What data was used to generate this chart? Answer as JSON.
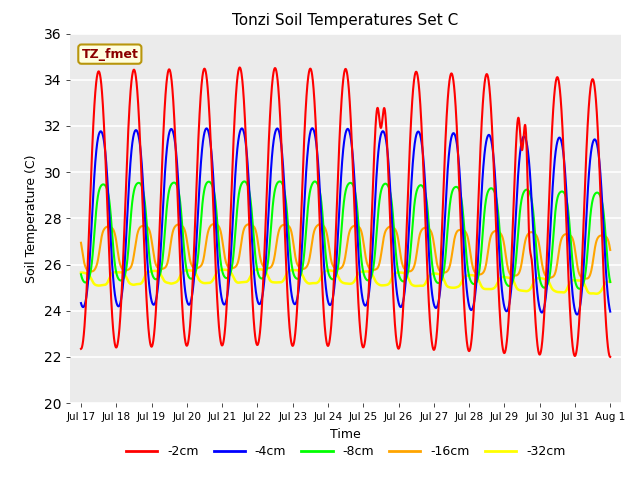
{
  "title": "Tonzi Soil Temperatures Set C",
  "xlabel": "Time",
  "ylabel": "Soil Temperature (C)",
  "ylim": [
    20,
    36
  ],
  "legend_labels": [
    "-2cm",
    "-4cm",
    "-8cm",
    "-16cm",
    "-32cm"
  ],
  "legend_colors": [
    "red",
    "blue",
    "lime",
    "orange",
    "yellow"
  ],
  "x_tick_labels": [
    "Jul 17",
    "Jul 18",
    "Jul 19",
    "Jul 20",
    "Jul 21",
    "Jul 22",
    "Jul 23",
    "Jul 24",
    "Jul 25",
    "Jul 26",
    "Jul 27",
    "Jul 28",
    "Jul 29",
    "Jul 30",
    "Jul 31",
    "Aug 1"
  ],
  "annotation_text": "TZ_fmet",
  "background_color": "#ebebeb",
  "grid_color": "#d0d0d0",
  "depths": [
    {
      "name": "-2cm",
      "mean": 28.2,
      "amp": 6.0,
      "phase": 0.0,
      "lag": 0.0,
      "color": "red"
    },
    {
      "name": "-4cm",
      "mean": 27.8,
      "amp": 3.8,
      "phase": 0.0,
      "lag": 0.06,
      "color": "blue"
    },
    {
      "name": "-8cm",
      "mean": 27.2,
      "amp": 2.1,
      "phase": 0.0,
      "lag": 0.13,
      "color": "lime"
    },
    {
      "name": "-16cm",
      "mean": 26.5,
      "amp": 0.95,
      "phase": 0.0,
      "lag": 0.28,
      "color": "orange"
    },
    {
      "name": "-32cm",
      "mean": 25.2,
      "amp": 0.28,
      "phase": 0.0,
      "lag": 0.55,
      "color": "yellow"
    }
  ]
}
